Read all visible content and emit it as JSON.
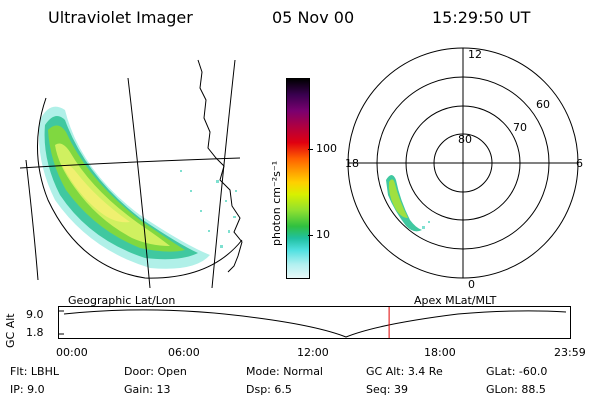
{
  "header": {
    "title": "Ultraviolet Imager",
    "date": "05 Nov 00",
    "time": "15:29:50 UT"
  },
  "colorbar": {
    "unit_label": "photon cm⁻²s⁻¹",
    "ticks": [
      "100",
      "10"
    ],
    "colors": [
      "#000000",
      "#3a0050",
      "#7a0070",
      "#b00040",
      "#e00010",
      "#ff6000",
      "#ff9a00",
      "#ffd000",
      "#d8f000",
      "#90e030",
      "#30c040",
      "#20c0a0",
      "#50e0e0",
      "#b0f0f0",
      "#e8f8f8"
    ]
  },
  "polar": {
    "ring_labels": [
      "80",
      "70",
      "60"
    ],
    "hour_labels": [
      "12",
      "18",
      "6",
      "0"
    ]
  },
  "timeline": {
    "left_label": "Geographic Lat/Lon",
    "right_label": "Apex MLat/MLT",
    "ylabel": "GC Alt",
    "ymax": "9.0",
    "ymin": "1.8",
    "xticks": [
      "00:00",
      "06:00",
      "12:00",
      "18:00",
      "23:59"
    ],
    "cursor_fraction": 0.646
  },
  "footer": {
    "row1": [
      {
        "label": "Flt:",
        "value": "LBHL"
      },
      {
        "label": "Door:",
        "value": "Open"
      },
      {
        "label": "Mode:",
        "value": "Normal"
      },
      {
        "label": "GC Alt:",
        "value": "3.4 Re"
      },
      {
        "label": "GLat:",
        "value": "-60.0"
      }
    ],
    "row2": [
      {
        "label": "IP:",
        "value": "9.0"
      },
      {
        "label": "Gain:",
        "value": "13"
      },
      {
        "label": "Dsp:",
        "value": "6.5"
      },
      {
        "label": "Seq:",
        "value": "39"
      },
      {
        "label": "GLon:",
        "value": "88.5"
      }
    ]
  }
}
